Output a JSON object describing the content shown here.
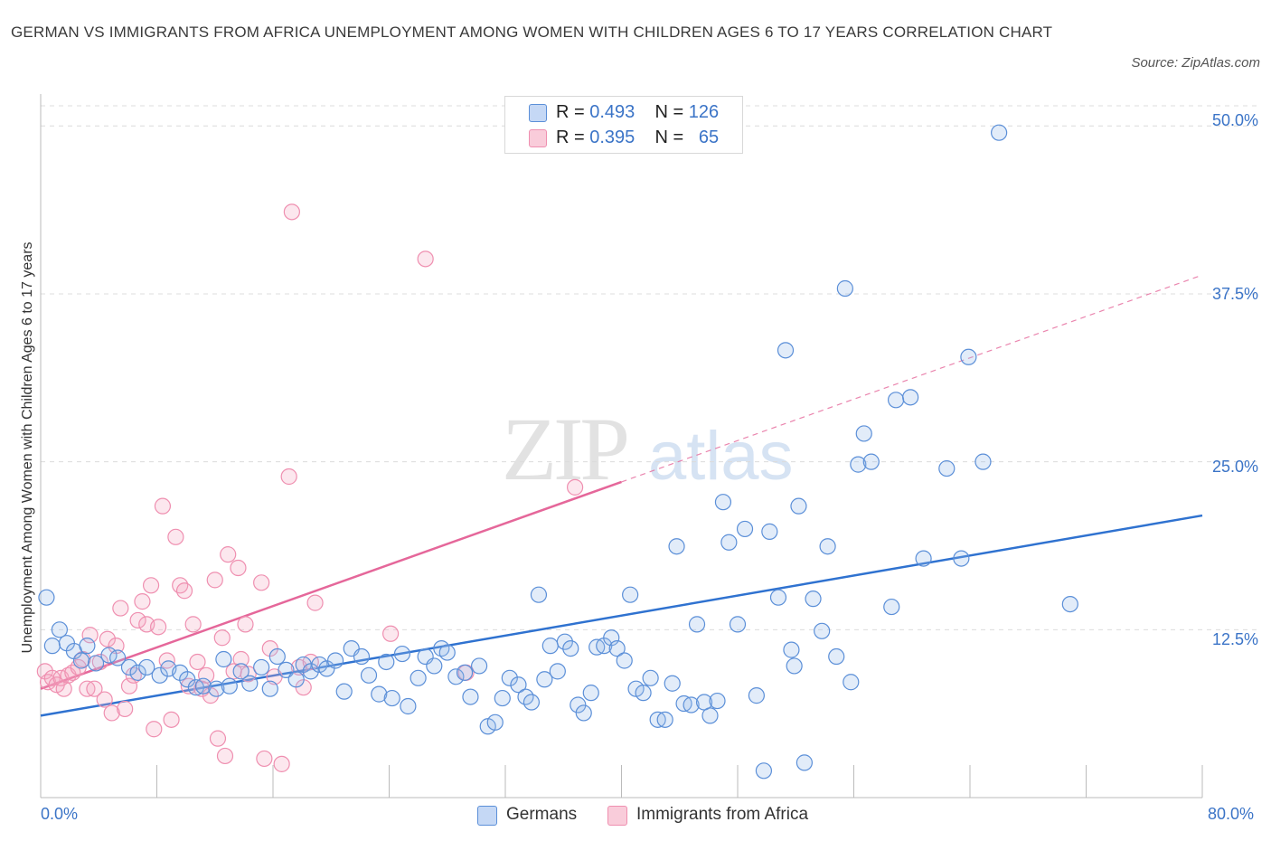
{
  "title": "GERMAN VS IMMIGRANTS FROM AFRICA UNEMPLOYMENT AMONG WOMEN WITH CHILDREN AGES 6 TO 17 YEARS CORRELATION CHART",
  "source": "Source: ZipAtlas.com",
  "watermark": "ZIPatlas",
  "colors": {
    "germans": "#5b8fd8",
    "africa": "#ef8fb0",
    "germans_line": "#2f72d0",
    "africa_line": "#e5679a",
    "tick_text": "#3b74c7"
  },
  "legend": {
    "germans": {
      "r_label": "R = ",
      "r": "0.493",
      "n_label": "N = ",
      "n": "126"
    },
    "africa": {
      "r_label": "R = ",
      "r": "0.395",
      "n_label": "N = ",
      "n": "65"
    }
  },
  "bottom_legend": {
    "germans": "Germans",
    "africa": "Immigrants from Africa"
  },
  "chart_data": {
    "type": "scatter",
    "title": "GERMAN VS IMMIGRANTS FROM AFRICA UNEMPLOYMENT AMONG WOMEN WITH CHILDREN AGES 6 TO 17 YEARS CORRELATION CHART",
    "xlabel": "",
    "ylabel": "Unemployment Among Women with Children Ages 6 to 17 years",
    "xlim": [
      0,
      80
    ],
    "ylim": [
      0,
      51.5
    ],
    "x_tick_labels": [
      "0.0%",
      "80.0%"
    ],
    "y_tick_labels": [
      "12.5%",
      "25.0%",
      "37.5%",
      "50.0%"
    ],
    "y_ticks": [
      12.5,
      25.0,
      37.5,
      50.0
    ],
    "grid": true,
    "legend_position": "top-center",
    "series": [
      {
        "name": "Germans",
        "r": 0.493,
        "n": 126,
        "trend": {
          "x": [
            0,
            80
          ],
          "y": [
            6.1,
            21.0
          ]
        },
        "points": [
          [
            0.4,
            14.9
          ],
          [
            1.3,
            12.5
          ],
          [
            0.8,
            11.3
          ],
          [
            1.8,
            11.5
          ],
          [
            2.3,
            10.9
          ],
          [
            3.2,
            11.3
          ],
          [
            2.8,
            10.2
          ],
          [
            3.8,
            10.0
          ],
          [
            4.7,
            10.6
          ],
          [
            5.3,
            10.4
          ],
          [
            6.1,
            9.7
          ],
          [
            6.7,
            9.3
          ],
          [
            7.3,
            9.7
          ],
          [
            8.2,
            9.1
          ],
          [
            8.8,
            9.6
          ],
          [
            9.6,
            9.3
          ],
          [
            10.1,
            8.8
          ],
          [
            10.7,
            8.2
          ],
          [
            11.2,
            8.3
          ],
          [
            12.1,
            8.1
          ],
          [
            12.6,
            10.3
          ],
          [
            13.0,
            8.3
          ],
          [
            13.8,
            9.4
          ],
          [
            14.4,
            8.5
          ],
          [
            15.2,
            9.7
          ],
          [
            15.8,
            8.1
          ],
          [
            16.3,
            10.5
          ],
          [
            16.9,
            9.5
          ],
          [
            17.6,
            8.8
          ],
          [
            18.1,
            9.9
          ],
          [
            18.6,
            9.4
          ],
          [
            19.2,
            9.9
          ],
          [
            19.7,
            9.6
          ],
          [
            20.3,
            10.2
          ],
          [
            20.9,
            7.9
          ],
          [
            21.4,
            11.1
          ],
          [
            22.1,
            10.5
          ],
          [
            22.6,
            9.1
          ],
          [
            23.3,
            7.7
          ],
          [
            23.8,
            10.1
          ],
          [
            24.2,
            7.4
          ],
          [
            24.9,
            10.7
          ],
          [
            25.3,
            6.8
          ],
          [
            26.0,
            8.9
          ],
          [
            26.5,
            10.5
          ],
          [
            27.1,
            9.8
          ],
          [
            27.6,
            11.1
          ],
          [
            28.0,
            10.8
          ],
          [
            28.6,
            9.0
          ],
          [
            29.2,
            9.3
          ],
          [
            29.6,
            7.5
          ],
          [
            30.2,
            9.8
          ],
          [
            30.8,
            5.3
          ],
          [
            31.3,
            5.6
          ],
          [
            31.8,
            7.4
          ],
          [
            32.3,
            8.9
          ],
          [
            32.9,
            8.4
          ],
          [
            33.4,
            7.5
          ],
          [
            33.8,
            7.1
          ],
          [
            34.7,
            8.8
          ],
          [
            34.3,
            15.1
          ],
          [
            35.1,
            11.3
          ],
          [
            35.6,
            9.4
          ],
          [
            36.1,
            11.6
          ],
          [
            36.5,
            11.1
          ],
          [
            37.0,
            6.9
          ],
          [
            37.4,
            6.3
          ],
          [
            37.9,
            7.8
          ],
          [
            38.3,
            11.2
          ],
          [
            38.8,
            11.3
          ],
          [
            39.3,
            11.9
          ],
          [
            39.7,
            11.1
          ],
          [
            40.2,
            10.2
          ],
          [
            40.6,
            15.1
          ],
          [
            41.0,
            8.1
          ],
          [
            41.5,
            7.8
          ],
          [
            42.0,
            8.9
          ],
          [
            42.5,
            5.8
          ],
          [
            43.0,
            5.8
          ],
          [
            43.5,
            8.5
          ],
          [
            43.8,
            18.7
          ],
          [
            44.3,
            7.0
          ],
          [
            44.8,
            6.9
          ],
          [
            45.2,
            12.9
          ],
          [
            45.7,
            7.1
          ],
          [
            46.1,
            6.1
          ],
          [
            46.6,
            7.2
          ],
          [
            47.0,
            22.0
          ],
          [
            47.4,
            19.0
          ],
          [
            48.0,
            12.9
          ],
          [
            48.5,
            20.0
          ],
          [
            49.3,
            7.6
          ],
          [
            49.8,
            2.0
          ],
          [
            50.2,
            19.8
          ],
          [
            50.8,
            14.9
          ],
          [
            51.3,
            33.3
          ],
          [
            51.7,
            11.0
          ],
          [
            51.9,
            9.8
          ],
          [
            52.2,
            21.7
          ],
          [
            52.6,
            2.6
          ],
          [
            53.2,
            14.8
          ],
          [
            53.8,
            12.4
          ],
          [
            54.2,
            18.7
          ],
          [
            54.8,
            10.5
          ],
          [
            55.4,
            37.9
          ],
          [
            55.8,
            8.6
          ],
          [
            56.3,
            24.8
          ],
          [
            56.7,
            27.1
          ],
          [
            57.2,
            25.0
          ],
          [
            58.6,
            14.2
          ],
          [
            58.9,
            29.6
          ],
          [
            59.9,
            29.8
          ],
          [
            60.8,
            17.8
          ],
          [
            62.4,
            24.5
          ],
          [
            63.4,
            17.8
          ],
          [
            63.9,
            32.8
          ],
          [
            64.9,
            25.0
          ],
          [
            66.0,
            49.5
          ],
          [
            70.9,
            14.4
          ]
        ]
      },
      {
        "name": "Immigrants from Africa",
        "r": 0.395,
        "n": 65,
        "trend": {
          "x": [
            0,
            40
          ],
          "y": [
            8.1,
            23.5
          ]
        },
        "trend_extension": {
          "x": [
            40,
            80
          ],
          "y": [
            23.5,
            38.9
          ]
        },
        "points": [
          [
            0.3,
            9.4
          ],
          [
            0.5,
            8.6
          ],
          [
            0.8,
            8.9
          ],
          [
            1.1,
            8.4
          ],
          [
            1.4,
            8.9
          ],
          [
            1.6,
            8.1
          ],
          [
            1.9,
            9.1
          ],
          [
            2.2,
            9.3
          ],
          [
            2.6,
            9.7
          ],
          [
            2.9,
            10.3
          ],
          [
            3.2,
            8.1
          ],
          [
            3.4,
            12.1
          ],
          [
            3.7,
            8.1
          ],
          [
            4.1,
            10.1
          ],
          [
            4.4,
            7.3
          ],
          [
            4.6,
            11.8
          ],
          [
            4.9,
            6.3
          ],
          [
            5.2,
            11.3
          ],
          [
            5.5,
            14.1
          ],
          [
            5.8,
            6.6
          ],
          [
            6.1,
            8.3
          ],
          [
            6.4,
            9.1
          ],
          [
            6.7,
            13.2
          ],
          [
            7.0,
            14.6
          ],
          [
            7.3,
            12.9
          ],
          [
            7.6,
            15.8
          ],
          [
            7.8,
            5.1
          ],
          [
            8.1,
            12.7
          ],
          [
            8.4,
            21.7
          ],
          [
            8.7,
            10.2
          ],
          [
            9.0,
            5.8
          ],
          [
            9.3,
            19.4
          ],
          [
            9.6,
            15.8
          ],
          [
            9.9,
            15.4
          ],
          [
            10.2,
            8.3
          ],
          [
            10.5,
            12.9
          ],
          [
            10.8,
            10.1
          ],
          [
            11.1,
            8.1
          ],
          [
            11.4,
            9.1
          ],
          [
            11.7,
            7.6
          ],
          [
            12.0,
            16.2
          ],
          [
            12.2,
            4.4
          ],
          [
            12.5,
            11.9
          ],
          [
            12.7,
            3.1
          ],
          [
            12.9,
            18.1
          ],
          [
            13.3,
            9.4
          ],
          [
            13.6,
            17.1
          ],
          [
            13.8,
            10.3
          ],
          [
            14.1,
            12.9
          ],
          [
            14.3,
            9.2
          ],
          [
            15.2,
            16.0
          ],
          [
            15.4,
            2.9
          ],
          [
            15.8,
            11.1
          ],
          [
            16.1,
            9.0
          ],
          [
            16.6,
            2.5
          ],
          [
            17.1,
            23.9
          ],
          [
            17.3,
            43.6
          ],
          [
            17.8,
            9.7
          ],
          [
            18.1,
            8.2
          ],
          [
            18.6,
            10.1
          ],
          [
            18.9,
            14.5
          ],
          [
            24.1,
            12.2
          ],
          [
            26.5,
            40.1
          ],
          [
            29.3,
            9.3
          ],
          [
            36.8,
            23.1
          ]
        ]
      }
    ]
  }
}
